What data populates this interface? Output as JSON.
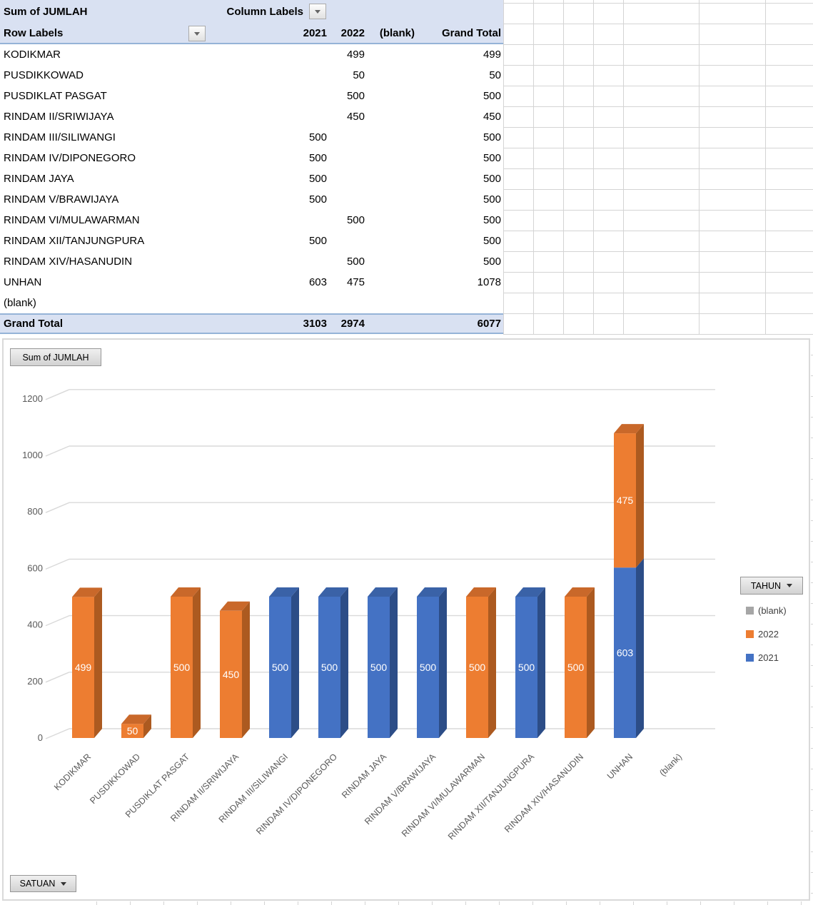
{
  "pivot": {
    "title_cell": "Sum of JUMLAH",
    "column_labels_cell": "Column Labels",
    "row_labels_cell": "Row Labels",
    "value_columns": [
      "2021",
      "2022",
      "(blank)",
      "Grand Total"
    ],
    "rows": [
      {
        "label": "KODIKMAR",
        "v2021": "",
        "v2022": "499",
        "vblank": "",
        "total": "499"
      },
      {
        "label": "PUSDIKKOWAD",
        "v2021": "",
        "v2022": "50",
        "vblank": "",
        "total": "50"
      },
      {
        "label": "PUSDIKLAT PASGAT",
        "v2021": "",
        "v2022": "500",
        "vblank": "",
        "total": "500"
      },
      {
        "label": "RINDAM II/SRIWIJAYA",
        "v2021": "",
        "v2022": "450",
        "vblank": "",
        "total": "450"
      },
      {
        "label": "RINDAM III/SILIWANGI",
        "v2021": "500",
        "v2022": "",
        "vblank": "",
        "total": "500"
      },
      {
        "label": "RINDAM IV/DIPONEGORO",
        "v2021": "500",
        "v2022": "",
        "vblank": "",
        "total": "500"
      },
      {
        "label": "RINDAM JAYA",
        "v2021": "500",
        "v2022": "",
        "vblank": "",
        "total": "500"
      },
      {
        "label": "RINDAM V/BRAWIJAYA",
        "v2021": "500",
        "v2022": "",
        "vblank": "",
        "total": "500"
      },
      {
        "label": "RINDAM VI/MULAWARMAN",
        "v2021": "",
        "v2022": "500",
        "vblank": "",
        "total": "500"
      },
      {
        "label": "RINDAM XII/TANJUNGPURA",
        "v2021": "500",
        "v2022": "",
        "vblank": "",
        "total": "500"
      },
      {
        "label": "RINDAM XIV/HASANUDIN",
        "v2021": "",
        "v2022": "500",
        "vblank": "",
        "total": "500"
      },
      {
        "label": "UNHAN",
        "v2021": "603",
        "v2022": "475",
        "vblank": "",
        "total": "1078"
      },
      {
        "label": "(blank)",
        "v2021": "",
        "v2022": "",
        "vblank": "",
        "total": ""
      }
    ],
    "grand_total_row": {
      "label": "Grand Total",
      "v2021": "3103",
      "v2022": "2974",
      "vblank": "",
      "total": "6077"
    }
  },
  "chart": {
    "value_field_button": "Sum of JUMLAH",
    "axis_field_button": "SATUAN",
    "legend_field_button": "TAHUN",
    "legend_items": [
      {
        "label": "(blank)",
        "color": "#A6A6A6"
      },
      {
        "label": "2022",
        "color": "#ED7D31"
      },
      {
        "label": "2021",
        "color": "#4472C4"
      }
    ]
  },
  "chart_data": {
    "type": "bar",
    "subtype": "3d_stacked_column",
    "title": "Sum of JUMLAH",
    "categories": [
      "KODIKMAR",
      "PUSDIKKOWAD",
      "PUSDIKLAT PASGAT",
      "RINDAM II/SRIWIJAYA",
      "RINDAM III/SILIWANGI",
      "RINDAM IV/DIPONEGORO",
      "RINDAM JAYA",
      "RINDAM V/BRAWIJAYA",
      "RINDAM VI/MULAWARMAN",
      "RINDAM XII/TANJUNGPURA",
      "RINDAM XIV/HASANUDIN",
      "UNHAN",
      "(blank)"
    ],
    "series": [
      {
        "name": "2021",
        "color": "#4472C4",
        "side_color": "#2C4D87",
        "top_color": "#3A62A7",
        "values": [
          0,
          0,
          0,
          0,
          500,
          500,
          500,
          500,
          0,
          500,
          0,
          603,
          0
        ]
      },
      {
        "name": "2022",
        "color": "#ED7D31",
        "side_color": "#AC5A20",
        "top_color": "#C9682A",
        "values": [
          499,
          50,
          500,
          450,
          0,
          0,
          0,
          0,
          500,
          0,
          500,
          475,
          0
        ]
      },
      {
        "name": "(blank)",
        "color": "#A6A6A6",
        "side_color": "#7F7F7F",
        "top_color": "#939393",
        "values": [
          0,
          0,
          0,
          0,
          0,
          0,
          0,
          0,
          0,
          0,
          0,
          0,
          0
        ]
      }
    ],
    "xlabel": "",
    "ylabel": "",
    "ylim": [
      0,
      1200
    ],
    "ytick_interval": 200,
    "yticks": [
      0,
      200,
      400,
      600,
      800,
      1000,
      1200
    ],
    "grid": true,
    "legend_title": "TAHUN",
    "legend_position": "right",
    "data_labels_color": "#FFFFFF",
    "axis_text_color": "#595959",
    "gridline_color": "#D9D9D9"
  }
}
